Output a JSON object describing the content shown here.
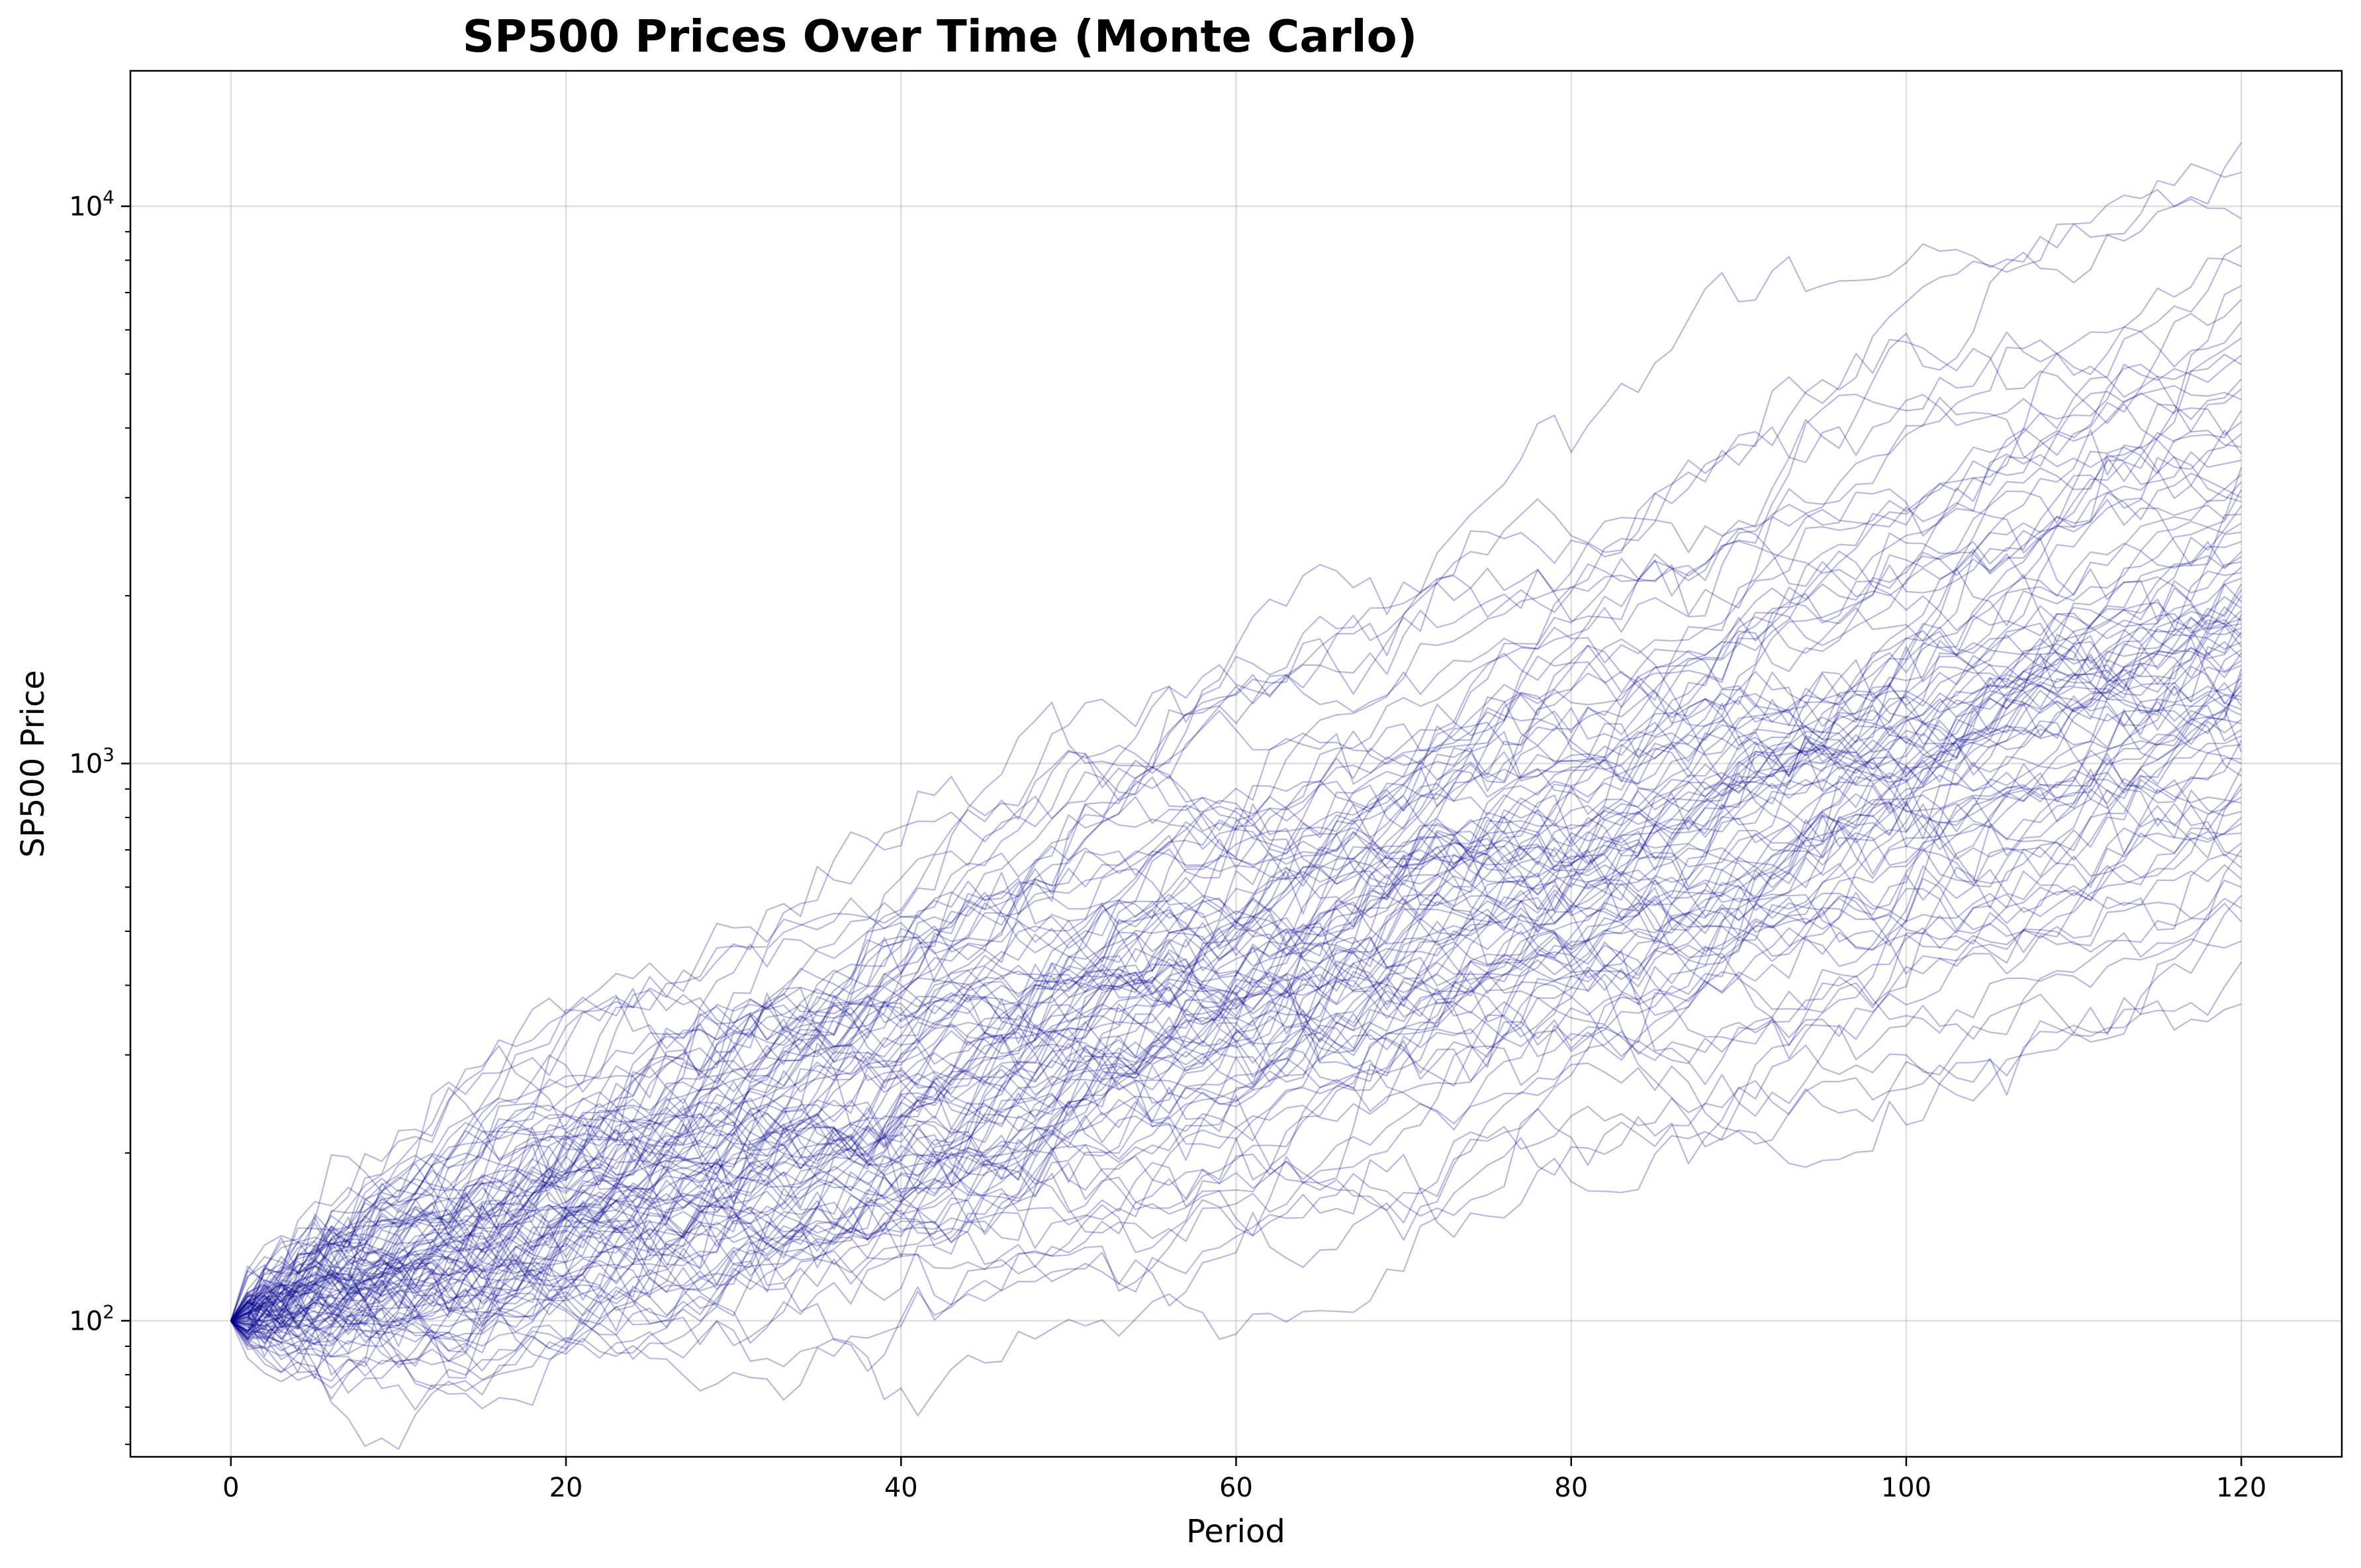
{
  "chart_data": {
    "type": "line",
    "title": "SP500 Prices Over Time (Monte Carlo)",
    "xlabel": "Period",
    "ylabel": "SP500 Price",
    "xlim": [
      -6,
      126
    ],
    "ylim": [
      57,
      17500
    ],
    "yscale": "log",
    "grid": true,
    "legend": "none",
    "line_color": "#00008b",
    "line_opacity": 0.28,
    "x_ticks": [
      {
        "value": 0,
        "label": "0"
      },
      {
        "value": 20,
        "label": "20"
      },
      {
        "value": 40,
        "label": "40"
      },
      {
        "value": 60,
        "label": "60"
      },
      {
        "value": 80,
        "label": "80"
      },
      {
        "value": 100,
        "label": "100"
      },
      {
        "value": 120,
        "label": "120"
      }
    ],
    "y_ticks": [
      {
        "value": 100,
        "base": "10",
        "exp": "2"
      },
      {
        "value": 1000,
        "base": "10",
        "exp": "3"
      },
      {
        "value": 10000,
        "base": "10",
        "exp": "4"
      }
    ],
    "x": {
      "start": 0,
      "end": 120,
      "step": 1
    },
    "start_value": 100,
    "series_final_values": [
      13000,
      11500,
      9500,
      8500,
      7800,
      7200,
      6800,
      6200,
      5800,
      5400,
      5200,
      4900,
      4700,
      4500,
      4300,
      4100,
      3900,
      3700,
      3600,
      3500,
      3400,
      3300,
      3200,
      3100,
      3000,
      2950,
      2900,
      2800,
      2700,
      2600,
      2500,
      2400,
      2350,
      2300,
      2250,
      2200,
      2150,
      2100,
      2050,
      2000,
      1950,
      1900,
      1880,
      1850,
      1820,
      1800,
      1780,
      1750,
      1720,
      1700,
      1680,
      1650,
      1620,
      1600,
      1580,
      1550,
      1530,
      1500,
      1480,
      1450,
      1420,
      1400,
      1380,
      1350,
      1320,
      1300,
      1270,
      1250,
      1220,
      1200,
      1180,
      1150,
      1120,
      1100,
      1080,
      1050,
      1020,
      1000,
      980,
      950,
      920,
      900,
      870,
      850,
      820,
      800,
      780,
      750,
      720,
      700,
      680,
      650,
      620,
      600,
      580,
      550,
      520,
      480,
      440,
      370
    ]
  }
}
